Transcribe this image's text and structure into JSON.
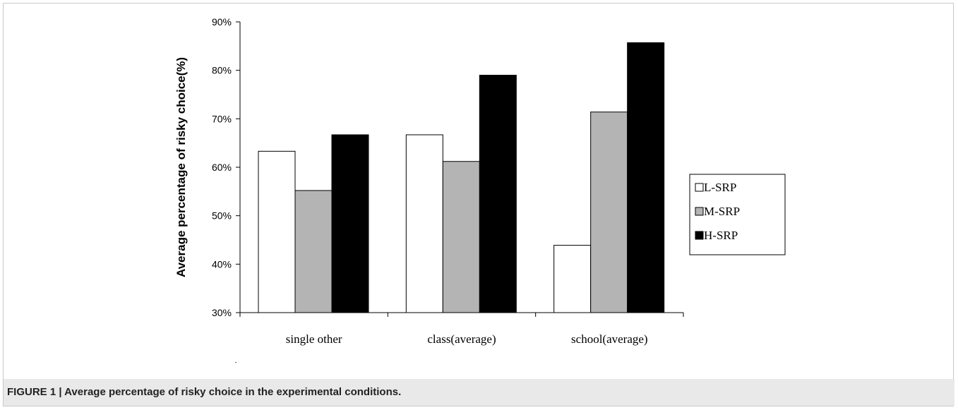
{
  "caption": "FIGURE 1 | Average percentage of risky choice in the experimental conditions.",
  "colors": {
    "L-SRP": "#ffffff",
    "M-SRP": "#b4b4b4",
    "H-SRP": "#000000"
  },
  "chart_data": {
    "type": "bar",
    "title": "",
    "xlabel": "",
    "ylabel": "Average percentage of risky choice(%)",
    "ylim": [
      30,
      90
    ],
    "yticks": [
      "30%",
      "40%",
      "50%",
      "60%",
      "70%",
      "80%",
      "90%"
    ],
    "ytick_values": [
      30,
      40,
      50,
      60,
      70,
      80,
      90
    ],
    "categories": [
      "single other",
      "class(average)",
      "school(average)"
    ],
    "series": [
      {
        "name": "L-SRP",
        "values": [
          63.3,
          66.7,
          43.9
        ]
      },
      {
        "name": "M-SRP",
        "values": [
          55.2,
          61.2,
          71.4
        ]
      },
      {
        "name": "H-SRP",
        "values": [
          66.7,
          79.0,
          85.7
        ]
      }
    ],
    "legend_position": "right",
    "grid": false
  }
}
